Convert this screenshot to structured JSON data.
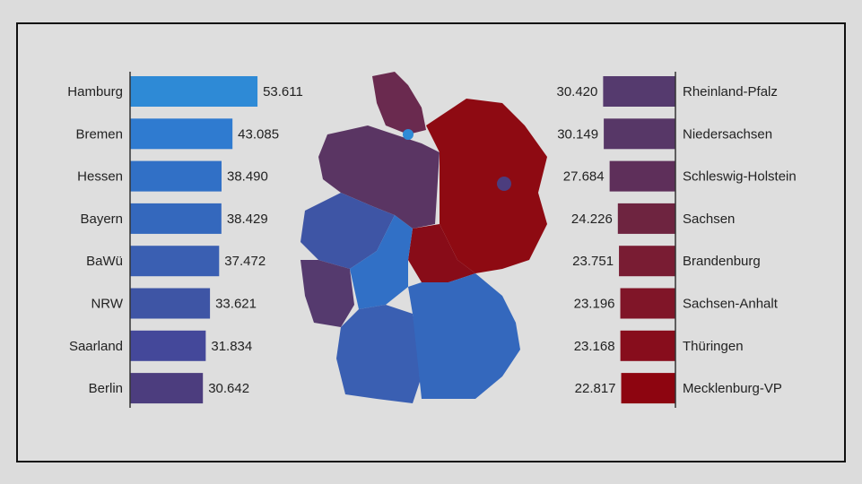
{
  "chart_data": [
    {
      "type": "bar",
      "orientation": "horizontal",
      "side": "left",
      "categories": [
        "Hamburg",
        "Bremen",
        "Hessen",
        "Bayern",
        "BaWü",
        "NRW",
        "Saarland",
        "Berlin"
      ],
      "values": [
        53.611,
        43.085,
        38.49,
        38.429,
        37.472,
        33.621,
        31.834,
        30.642
      ],
      "value_labels": [
        "53.611",
        "43.085",
        "38.490",
        "38.429",
        "37.472",
        "33.621",
        "31.834",
        "30.642"
      ],
      "colors": [
        "#2e8ad6",
        "#2f7bd0",
        "#3170c6",
        "#3468bd",
        "#3a5fb2",
        "#3e55a5",
        "#44489a",
        "#4c3d7e"
      ]
    },
    {
      "type": "bar",
      "orientation": "horizontal",
      "side": "right",
      "categories": [
        "Rheinland-Pfalz",
        "Niedersachsen",
        "Schleswig-Holstein",
        "Sachsen",
        "Brandenburg",
        "Sachsen-Anhalt",
        "Thüringen",
        "Mecklenburg-VP"
      ],
      "values": [
        30.42,
        30.149,
        27.684,
        24.226,
        23.751,
        23.196,
        23.168,
        22.817
      ],
      "value_labels": [
        "30.420",
        "30.149",
        "27.684",
        "24.226",
        "23.751",
        "23.196",
        "23.168",
        "22.817"
      ],
      "colors": [
        "#553a6e",
        "#573767",
        "#5e2f5a",
        "#6e2440",
        "#791c33",
        "#801528",
        "#870d1c",
        "#8d0510"
      ]
    }
  ]
}
